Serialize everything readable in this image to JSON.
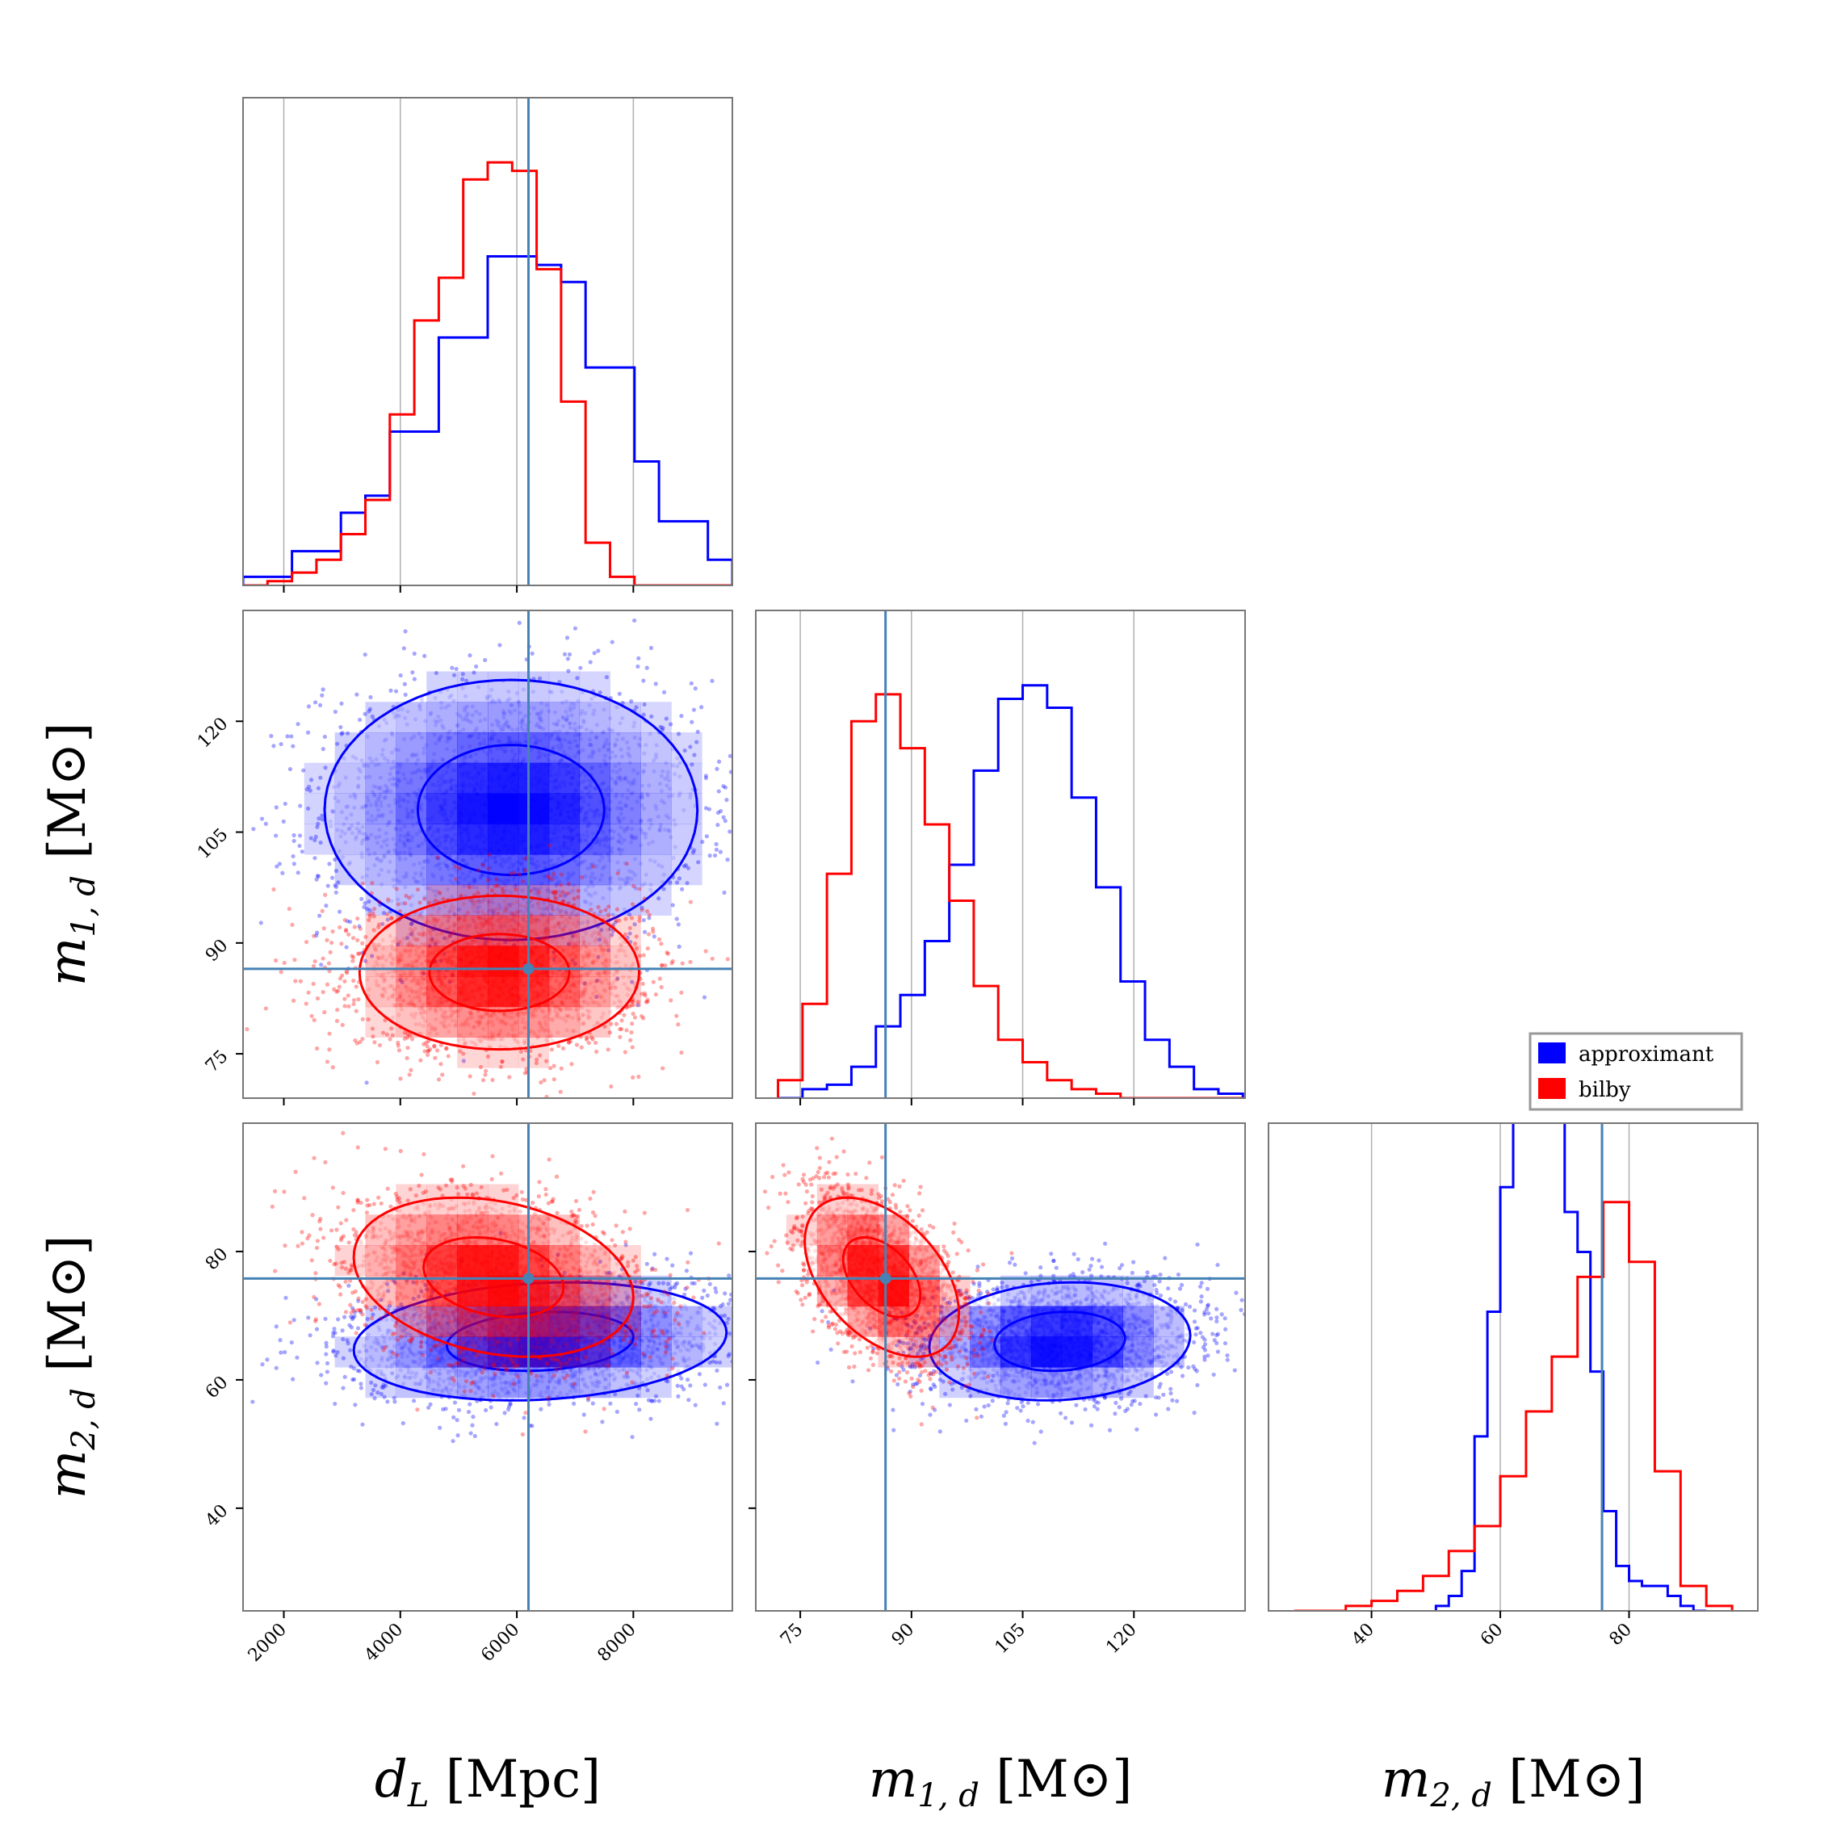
{
  "legend": {
    "entries": [
      {
        "label": "approximant",
        "color": "#0000ff"
      },
      {
        "label": "bilby",
        "color": "#ff0000"
      }
    ]
  },
  "truths": {
    "d_L": 6200,
    "m1": 86.5,
    "m2": 75.8
  },
  "chart_data": {
    "type": "corner",
    "parameters": [
      {
        "key": "d_L",
        "label_math": "d",
        "label_sub": "L",
        "label_unit": " [Mpc]",
        "range": [
          1300,
          9700
        ],
        "ticks": [
          2000,
          4000,
          6000,
          8000
        ],
        "tick_labels": [
          "2000",
          "4000",
          "6000",
          "8000"
        ]
      },
      {
        "key": "m1",
        "label_math": "m",
        "label_sub": "1, d",
        "label_unit": " [M⊙]",
        "range": [
          69,
          135
        ],
        "ticks": [
          75,
          90,
          105,
          120
        ],
        "tick_labels": [
          "75",
          "90",
          "105",
          "120"
        ]
      },
      {
        "key": "m2",
        "label_math": "m",
        "label_sub": "2, d",
        "label_unit": " [M⊙]",
        "range": [
          24,
          100
        ],
        "ticks": [
          40,
          60,
          80
        ],
        "tick_labels": [
          "40",
          "60",
          "80"
        ]
      }
    ],
    "series": [
      {
        "name": "approximant",
        "color": "#0000ff",
        "hist_d_L": {
          "edges": [
            1300,
            1720,
            2140,
            2560,
            2980,
            3400,
            3820,
            4240,
            4660,
            5080,
            5500,
            5920,
            6340,
            6760,
            7180,
            7600,
            8020,
            8440,
            8860,
            9280,
            9700
          ],
          "values": [
            0.02,
            0.02,
            0.08,
            0.08,
            0.17,
            0.21,
            0.36,
            0.36,
            0.58,
            0.58,
            0.77,
            0.77,
            0.75,
            0.71,
            0.51,
            0.51,
            0.29,
            0.15,
            0.15,
            0.06
          ]
        },
        "hist_m1": {
          "edges": [
            72,
            75.3,
            78.6,
            81.9,
            85.2,
            88.5,
            91.8,
            95.1,
            98.4,
            101.7,
            105,
            108.3,
            111.6,
            114.9,
            118.2,
            121.5,
            124.8,
            128.1,
            131.4,
            134.7
          ],
          "values": [
            0.0,
            0.02,
            0.03,
            0.07,
            0.16,
            0.23,
            0.35,
            0.52,
            0.73,
            0.89,
            0.92,
            0.87,
            0.67,
            0.47,
            0.26,
            0.13,
            0.07,
            0.02,
            0.01
          ]
        },
        "hist_m2": {
          "edges": [
            50,
            52,
            54,
            56,
            58,
            60,
            62,
            64,
            66,
            68,
            70,
            72,
            74,
            76,
            78,
            80,
            82,
            84,
            86,
            88,
            90,
            92
          ],
          "values": [
            0.01,
            0.03,
            0.08,
            0.35,
            0.6,
            0.85,
            1.05,
            1.05,
            1.05,
            1.05,
            0.8,
            0.72,
            0.48,
            0.2,
            0.09,
            0.06,
            0.05,
            0.05,
            0.03,
            0.01,
            0.0
          ]
        },
        "mean_d_L_m1": [
          5900,
          108
        ],
        "sd_d_L_m1": [
          1600,
          8.8
        ],
        "rho_d_L_m1": 0.0,
        "mean_d_L_m2": [
          6400,
          66
        ],
        "sd_d_L_m2": [
          1600,
          4.6
        ],
        "rho_d_L_m2": 0.15,
        "mean_m1_m2": [
          110,
          66
        ],
        "sd_m1_m2": [
          8.8,
          4.6
        ],
        "rho_m1_m2": 0.1
      },
      {
        "name": "bilby",
        "color": "#ff0000",
        "hist_d_L": {
          "edges": [
            1300,
            1720,
            2140,
            2560,
            2980,
            3400,
            3820,
            4240,
            4660,
            5080,
            5500,
            5920,
            6340,
            6760,
            7180,
            7600,
            8020,
            8440,
            8860,
            9280,
            9700
          ],
          "values": [
            0.0,
            0.01,
            0.03,
            0.06,
            0.12,
            0.2,
            0.4,
            0.62,
            0.72,
            0.95,
            0.99,
            0.97,
            0.74,
            0.43,
            0.1,
            0.02,
            0.0,
            0.0,
            0.0,
            0.0
          ]
        },
        "hist_m1": {
          "edges": [
            72,
            75.3,
            78.6,
            81.9,
            85.2,
            88.5,
            91.8,
            95.1,
            98.4,
            101.7,
            105,
            108.3,
            111.6,
            114.9,
            118.2,
            121.5,
            124.8,
            128.1,
            131.4,
            134.7
          ],
          "values": [
            0.04,
            0.21,
            0.5,
            0.84,
            0.9,
            0.78,
            0.61,
            0.44,
            0.25,
            0.13,
            0.08,
            0.04,
            0.02,
            0.01,
            0.0,
            0.0,
            0.0,
            0.0,
            0.0
          ]
        },
        "hist_m2": {
          "edges": [
            28,
            32,
            36,
            40,
            44,
            48,
            52,
            56,
            60,
            64,
            68,
            72,
            76,
            80,
            84,
            88,
            92,
            96
          ],
          "values": [
            0.0,
            0.0,
            0.01,
            0.02,
            0.04,
            0.07,
            0.12,
            0.17,
            0.27,
            0.4,
            0.51,
            0.67,
            0.82,
            0.7,
            0.28,
            0.05,
            0.01
          ]
        },
        "mean_d_L_m1": [
          5700,
          86
        ],
        "sd_d_L_m1": [
          1200,
          5.2
        ],
        "rho_d_L_m1": 0.0,
        "mean_d_L_m2": [
          5600,
          76
        ],
        "sd_d_L_m2": [
          1200,
          6.2
        ],
        "rho_d_L_m2": -0.25,
        "mean_m1_m2": [
          86,
          76
        ],
        "sd_m1_m2": [
          5.2,
          6.2
        ],
        "rho_m1_m2": -0.45
      }
    ]
  }
}
